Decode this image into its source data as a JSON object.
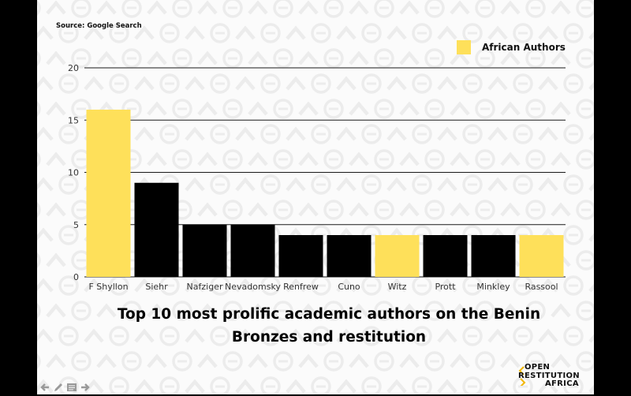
{
  "source": "Source: Google Search",
  "legend": {
    "label": "African Authors",
    "color": "#fee05a"
  },
  "colors": {
    "african": "#fee05a",
    "other": "#000000"
  },
  "title_lines": [
    "Top 10 most prolific academic authors on the Benin",
    "Bronzes and restitution"
  ],
  "brand": {
    "line1": "OPEN",
    "line2": "RESTITUTION",
    "line3": "AFRICA"
  },
  "nav_icons": [
    "arrow-left-icon",
    "pencil-icon",
    "notes-icon",
    "arrow-right-icon"
  ],
  "chart_data": {
    "type": "bar",
    "title": "Top 10 most prolific academic authors on the Benin Bronzes and restitution",
    "xlabel": "",
    "ylabel": "",
    "ylim": [
      0,
      20
    ],
    "yticks": [
      0,
      5,
      10,
      15,
      20
    ],
    "grid": true,
    "legend_placement": "top-right",
    "categories": [
      "F Shyllon",
      "Siehr",
      "Nafziger",
      "Nevadomsky",
      "Renfrew",
      "Cuno",
      "Witz",
      "Prott",
      "Minkley",
      "Rassool"
    ],
    "values": [
      16,
      9,
      5,
      5,
      4,
      4,
      4,
      4,
      4,
      4
    ],
    "african": [
      true,
      false,
      false,
      false,
      false,
      false,
      true,
      false,
      false,
      true
    ]
  }
}
